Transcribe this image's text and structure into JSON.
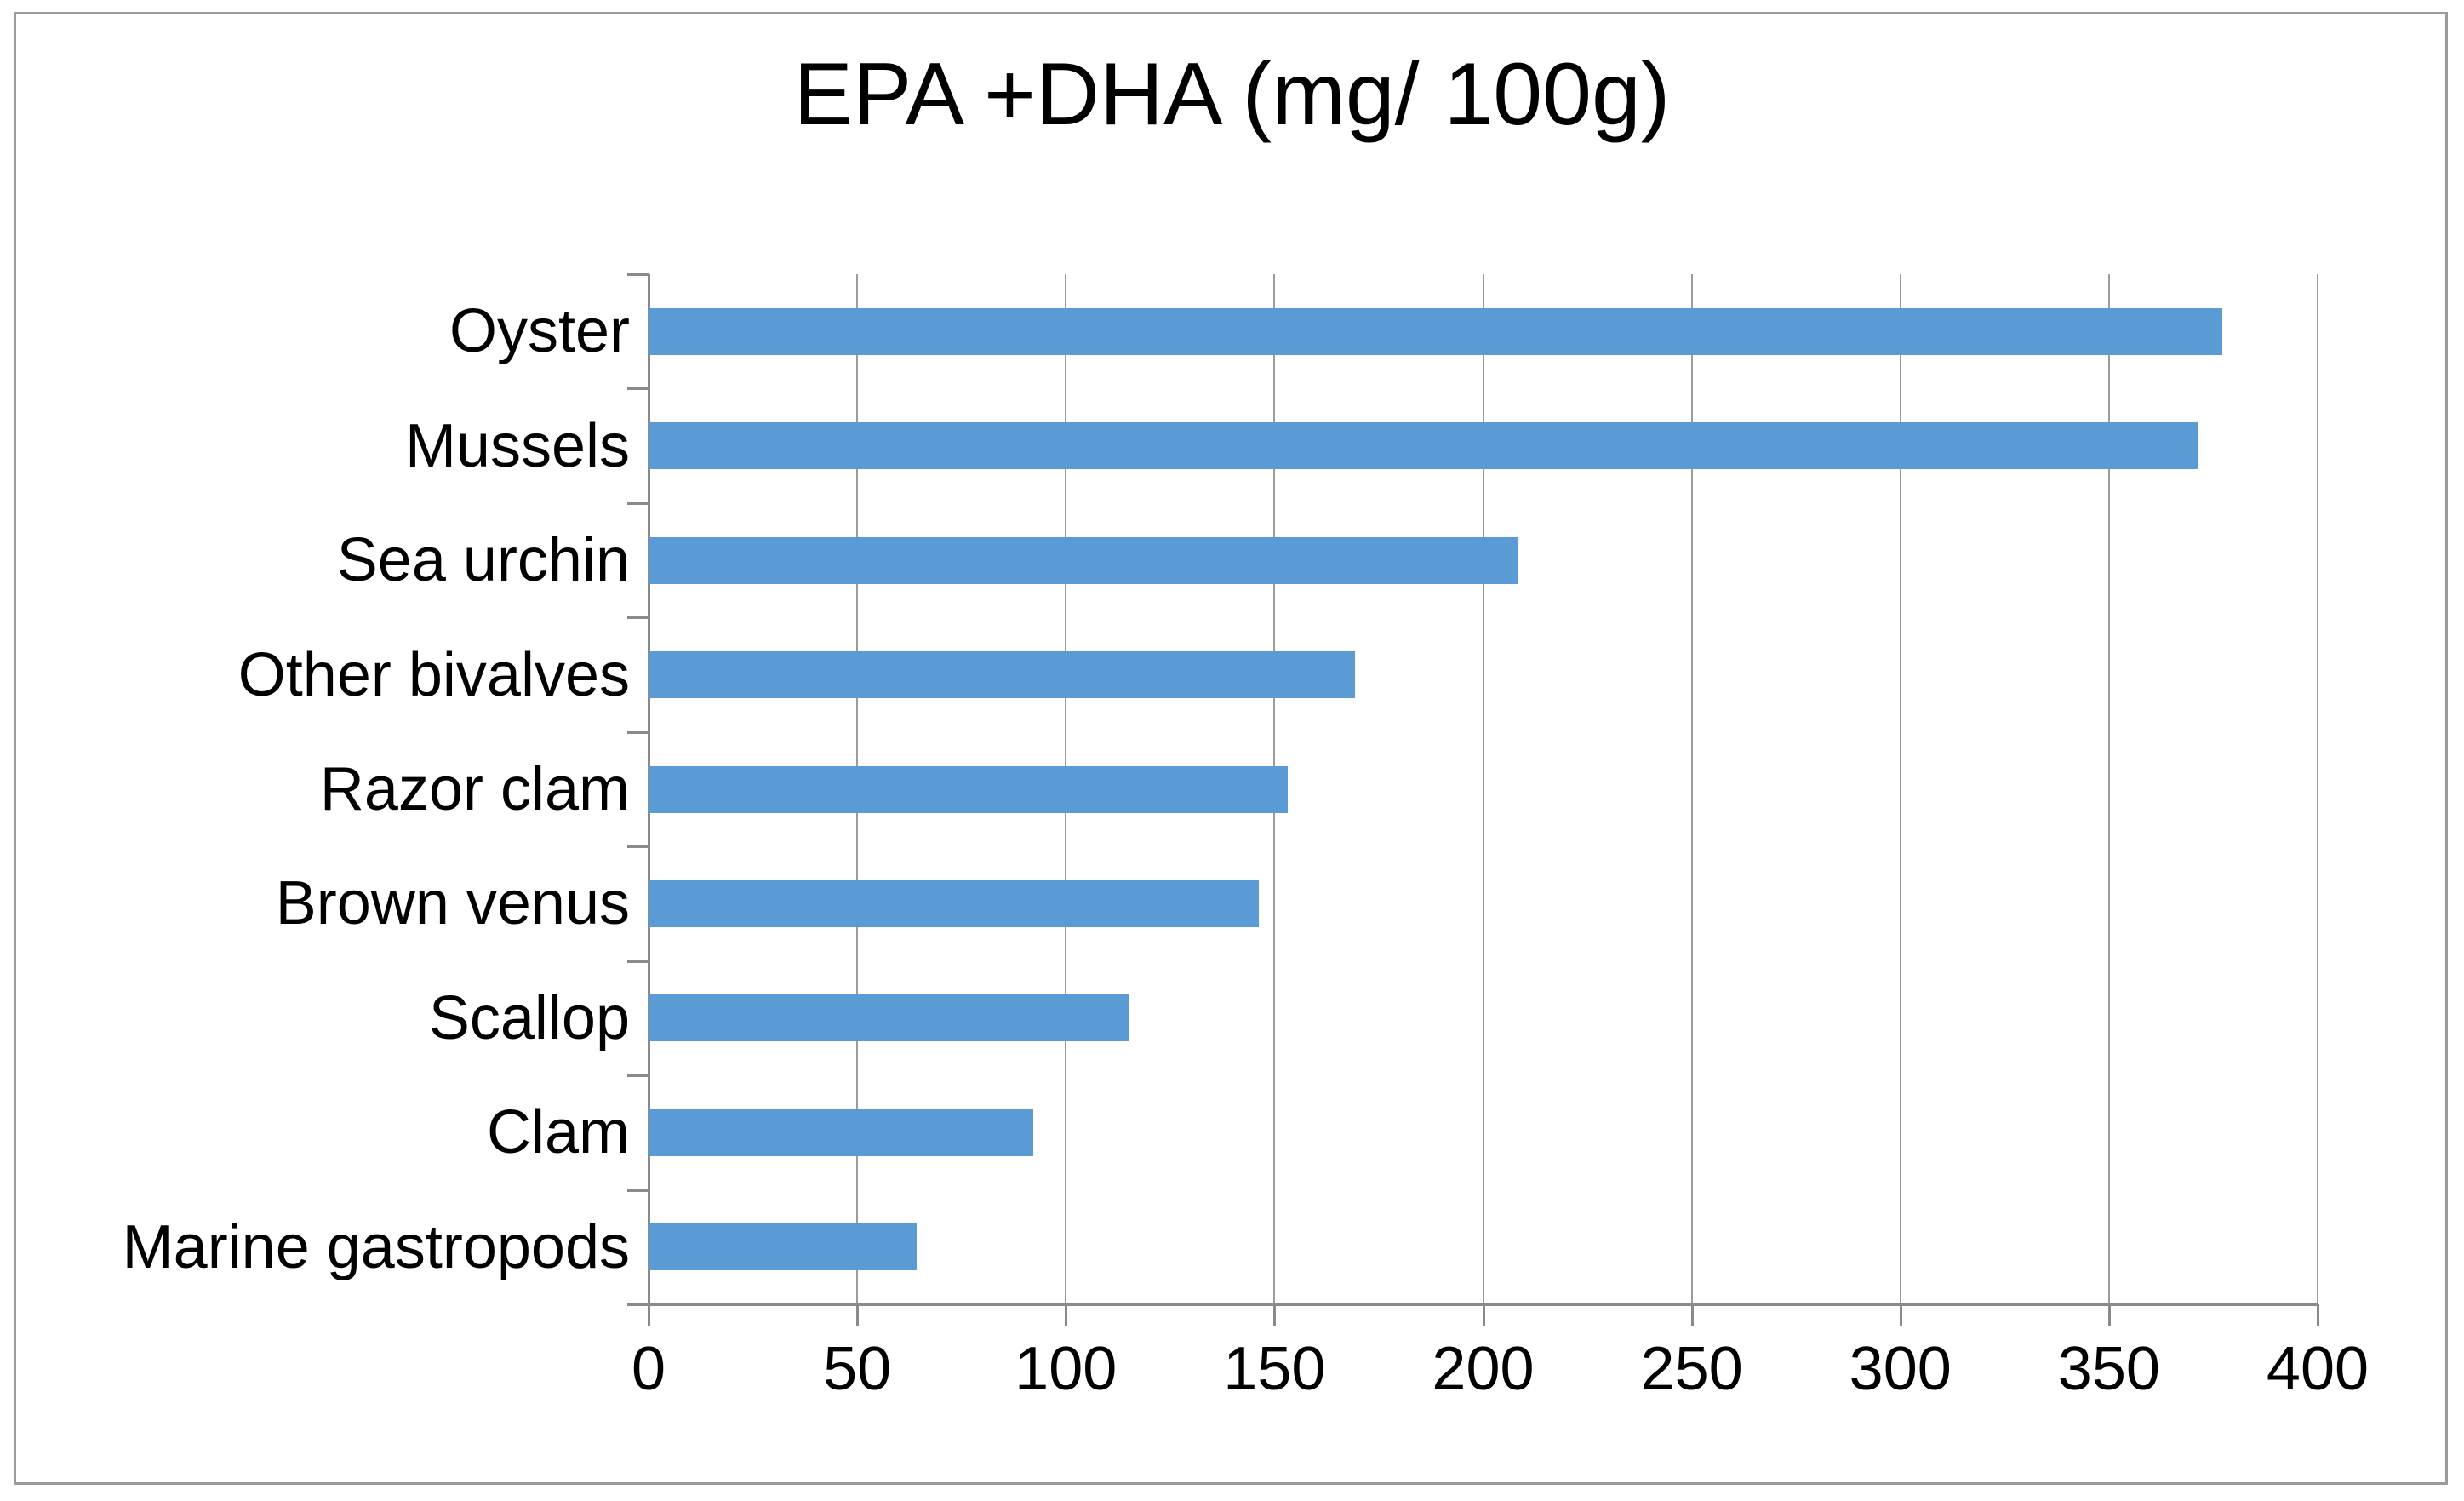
{
  "chart_data": {
    "type": "bar",
    "orientation": "horizontal",
    "title": "EPA +DHA (mg/ 100g)",
    "categories": [
      "Oyster",
      "Mussels",
      "Sea urchin",
      "Other bivalves",
      "Razor clam",
      "Brown venus",
      "Scallop",
      "Clam",
      "Marine gastropods"
    ],
    "values": [
      377,
      371,
      208,
      169,
      153,
      146,
      115,
      92,
      64
    ],
    "xlabel": "",
    "ylabel": "",
    "xlim": [
      0,
      400
    ],
    "xticks": [
      0,
      50,
      100,
      150,
      200,
      250,
      300,
      350,
      400
    ],
    "grid": true,
    "legend": false,
    "colors": {
      "bar": "#5B9BD5",
      "gridline": "#9c9c9c",
      "axis": "#8a8a8a",
      "frame_border": "#9b9b9b",
      "text": "#000000",
      "background": "#ffffff"
    }
  }
}
